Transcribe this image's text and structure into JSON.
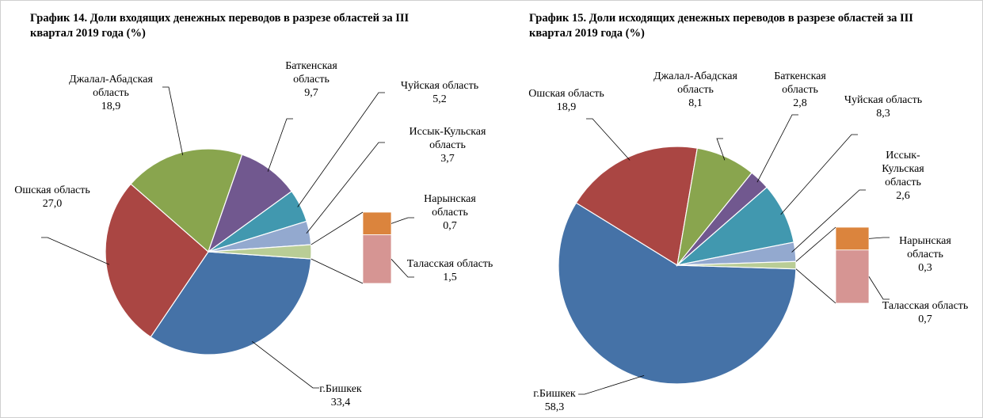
{
  "chart_data": [
    {
      "type": "bar-of-pie",
      "title": "График 14. Доли входящих денежных переводов в разрезе областей за III квартал 2019 года (%)",
      "categories": [
        "г.Бишкек",
        "Ошская область",
        "Джалал-Абадская область",
        "Баткенская область",
        "Чуйская область",
        "Иссык-Кульская область",
        "Нарынская область",
        "Таласская область"
      ],
      "values": [
        33.4,
        27.0,
        18.9,
        9.7,
        5.2,
        3.7,
        0.7,
        1.5
      ],
      "value_labels": [
        "33,4",
        "27,0",
        "18,9",
        "9,7",
        "5,2",
        "3,7",
        "0,7",
        "1,5"
      ],
      "colors": [
        "#4572a7",
        "#aa4643",
        "#89a54e",
        "#71588f",
        "#4198af",
        "#93a9cf",
        "#db843d",
        "#d69593"
      ],
      "other_color": "#b9cd96",
      "secondary_count": 2
    },
    {
      "type": "bar-of-pie",
      "title": "График 15. Доли исходящих денежных переводов в разрезе областей за III квартал 2019 года (%)",
      "categories": [
        "г.Бишкек",
        "Ошская область",
        "Джалал-Абадская область",
        "Баткенская область",
        "Чуйская область",
        "Иссык-Кульская область",
        "Нарынская область",
        "Таласская область"
      ],
      "values": [
        58.3,
        18.9,
        8.1,
        2.8,
        8.3,
        2.6,
        0.3,
        0.7
      ],
      "value_labels": [
        "58,3",
        "18,9",
        "8,1",
        "2,8",
        "8,3",
        "2,6",
        "0,3",
        "0,7"
      ],
      "colors": [
        "#4572a7",
        "#aa4643",
        "#89a54e",
        "#71588f",
        "#4198af",
        "#93a9cf",
        "#db843d",
        "#d69593"
      ],
      "other_color": "#b9cd96",
      "secondary_count": 2
    }
  ]
}
